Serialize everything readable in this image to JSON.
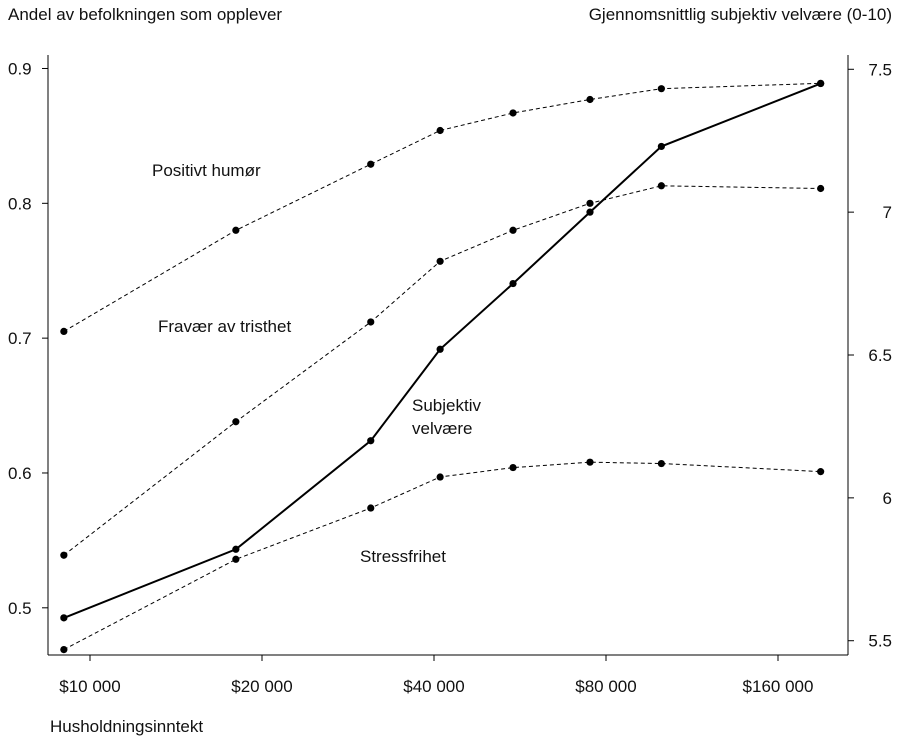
{
  "chart_data": {
    "type": "line",
    "left_axis_title": "Andel av befolkningen som opplever",
    "right_axis_title": "Gjennomsnittlig subjektiv velvære (0-10)",
    "xlabel": "Husholdningsinntekt",
    "x_scale": "log",
    "x_ticks": [
      10000,
      20000,
      40000,
      80000,
      160000
    ],
    "x_tick_labels": [
      "$10 000",
      "$20 000",
      "$40 000",
      "$80 000",
      "$160 000"
    ],
    "x": [
      9000,
      18000,
      31000,
      41000,
      55000,
      75000,
      100000,
      190000
    ],
    "left_ylim": [
      0.465,
      0.91
    ],
    "left_ticks": [
      0.5,
      0.6,
      0.7,
      0.8,
      0.9
    ],
    "left_tick_labels": [
      "0.5",
      "0.6",
      "0.7",
      "0.8",
      "0.9"
    ],
    "right_ylim": [
      5.45,
      7.55
    ],
    "right_ticks": [
      5.5,
      6,
      6.5,
      7,
      7.5
    ],
    "right_tick_labels": [
      "5.5",
      "6",
      "6.5",
      "7",
      "7.5"
    ],
    "grid": false,
    "series": [
      {
        "name": "Positivt humør",
        "axis": "left",
        "style": "dashed",
        "values": [
          0.705,
          0.78,
          0.829,
          0.854,
          0.867,
          0.877,
          0.885,
          0.889
        ]
      },
      {
        "name": "Fravær av tristhet",
        "axis": "left",
        "style": "dashed",
        "values": [
          0.539,
          0.638,
          0.712,
          0.757,
          0.78,
          0.8,
          0.813,
          0.811
        ]
      },
      {
        "name": "Stressfrihet",
        "axis": "left",
        "style": "dashed",
        "values": [
          0.469,
          0.536,
          0.574,
          0.597,
          0.604,
          0.608,
          0.607,
          0.601
        ]
      },
      {
        "name": "Subjektiv velvære",
        "name_lines": [
          "Subjektiv",
          "velvære"
        ],
        "axis": "right",
        "style": "solid",
        "values": [
          5.58,
          5.82,
          6.2,
          6.52,
          6.75,
          7.0,
          7.23,
          7.45
        ]
      }
    ],
    "colors": {
      "line": "#000000",
      "text": "#111111"
    }
  }
}
